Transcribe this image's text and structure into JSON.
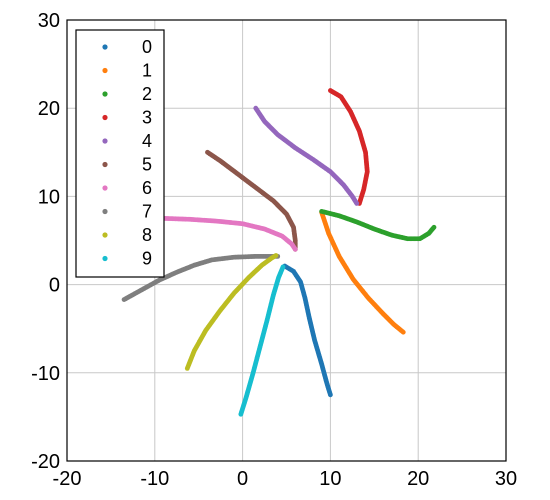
{
  "chart_data": {
    "type": "scatter",
    "title": "",
    "xlabel": "",
    "ylabel": "",
    "xlim": [
      -20,
      30
    ],
    "ylim": [
      -20,
      30
    ],
    "x_ticks": [
      -20,
      -10,
      0,
      10,
      20,
      30
    ],
    "y_ticks": [
      -20,
      -10,
      0,
      10,
      20,
      30
    ],
    "x_tick_labels": [
      "-20",
      "-10",
      "0",
      "10",
      "20",
      "30"
    ],
    "y_tick_labels": [
      "-20",
      "-10",
      "0",
      "10",
      "20",
      "30"
    ],
    "grid": true,
    "legend_position": "top-left",
    "series": [
      {
        "name": "0",
        "color": "#1f77b4",
        "points": [
          [
            4.8,
            2.1
          ],
          [
            5.8,
            1.5
          ],
          [
            6.6,
            0.3
          ],
          [
            7.1,
            -1.5
          ],
          [
            7.6,
            -3.8
          ],
          [
            8.2,
            -6.3
          ],
          [
            9.0,
            -9.0
          ],
          [
            9.6,
            -11.2
          ],
          [
            10.0,
            -12.5
          ]
        ]
      },
      {
        "name": "1",
        "color": "#ff7f0e",
        "points": [
          [
            9.0,
            8.2
          ],
          [
            9.8,
            5.8
          ],
          [
            11.0,
            3.2
          ],
          [
            12.6,
            0.6
          ],
          [
            14.3,
            -1.5
          ],
          [
            15.9,
            -3.2
          ],
          [
            17.2,
            -4.5
          ],
          [
            18.3,
            -5.4
          ]
        ]
      },
      {
        "name": "2",
        "color": "#2ca02c",
        "points": [
          [
            9.0,
            8.3
          ],
          [
            11.0,
            7.8
          ],
          [
            13.0,
            7.1
          ],
          [
            15.0,
            6.3
          ],
          [
            17.0,
            5.6
          ],
          [
            18.8,
            5.2
          ],
          [
            20.2,
            5.2
          ],
          [
            21.2,
            5.8
          ],
          [
            21.8,
            6.5
          ]
        ]
      },
      {
        "name": "3",
        "color": "#d62728",
        "points": [
          [
            10.0,
            22.0
          ],
          [
            11.2,
            21.3
          ],
          [
            12.3,
            19.6
          ],
          [
            13.3,
            17.4
          ],
          [
            14.0,
            15.0
          ],
          [
            14.2,
            12.8
          ],
          [
            13.8,
            10.8
          ],
          [
            13.3,
            9.2
          ]
        ]
      },
      {
        "name": "4",
        "color": "#9467bd",
        "points": [
          [
            1.5,
            20.0
          ],
          [
            2.5,
            18.5
          ],
          [
            4.0,
            17.0
          ],
          [
            6.0,
            15.5
          ],
          [
            8.0,
            14.2
          ],
          [
            10.0,
            12.8
          ],
          [
            11.5,
            11.3
          ],
          [
            12.5,
            10.0
          ],
          [
            13.0,
            9.2
          ]
        ]
      },
      {
        "name": "5",
        "color": "#8c564b",
        "points": [
          [
            -4.0,
            15.0
          ],
          [
            -2.5,
            14.0
          ],
          [
            -0.5,
            12.5
          ],
          [
            1.5,
            11.0
          ],
          [
            3.5,
            9.5
          ],
          [
            5.0,
            8.0
          ],
          [
            5.8,
            6.5
          ],
          [
            6.0,
            5.0
          ],
          [
            6.0,
            4.0
          ]
        ]
      },
      {
        "name": "6",
        "color": "#e377c2",
        "points": [
          [
            -8.8,
            7.5
          ],
          [
            -6.0,
            7.4
          ],
          [
            -3.0,
            7.2
          ],
          [
            0.0,
            6.9
          ],
          [
            2.5,
            6.3
          ],
          [
            4.5,
            5.5
          ],
          [
            5.6,
            4.6
          ],
          [
            6.0,
            4.0
          ]
        ]
      },
      {
        "name": "7",
        "color": "#7f7f7f",
        "points": [
          [
            -13.5,
            -1.7
          ],
          [
            -11.5,
            -0.6
          ],
          [
            -9.5,
            0.5
          ],
          [
            -7.5,
            1.4
          ],
          [
            -5.5,
            2.2
          ],
          [
            -3.5,
            2.8
          ],
          [
            -1.0,
            3.1
          ],
          [
            1.5,
            3.2
          ],
          [
            4.0,
            3.2
          ]
        ]
      },
      {
        "name": "8",
        "color": "#bcbd22",
        "points": [
          [
            -6.3,
            -9.5
          ],
          [
            -5.5,
            -7.5
          ],
          [
            -4.2,
            -5.2
          ],
          [
            -2.6,
            -3.0
          ],
          [
            -1.0,
            -1.0
          ],
          [
            0.7,
            0.8
          ],
          [
            2.2,
            2.2
          ],
          [
            3.3,
            3.0
          ],
          [
            3.8,
            3.3
          ]
        ]
      },
      {
        "name": "9",
        "color": "#17becf",
        "points": [
          [
            -0.2,
            -14.7
          ],
          [
            0.4,
            -12.8
          ],
          [
            1.2,
            -10.0
          ],
          [
            2.0,
            -7.0
          ],
          [
            2.8,
            -4.0
          ],
          [
            3.5,
            -1.2
          ],
          [
            4.1,
            0.8
          ],
          [
            4.6,
            2.0
          ]
        ]
      }
    ]
  }
}
